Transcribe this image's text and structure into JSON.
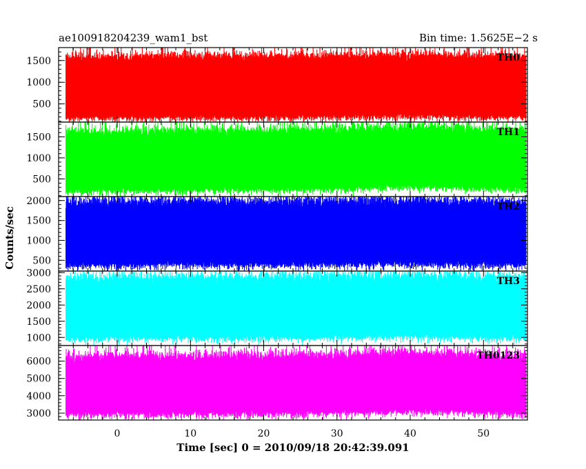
{
  "header": {
    "left_title": "ae100918204239_wam1_bst",
    "right_title": "Bin time: 1.5625E−2 s"
  },
  "axes": {
    "xlabel": "Time [sec] 0 = 2010/09/18 20:42:39.091",
    "ylabel": "Counts/sec",
    "x_ticks": [
      "0",
      "10",
      "20",
      "30",
      "40",
      "50"
    ]
  },
  "chart_data": {
    "type": "line",
    "x_range": [
      -8,
      56
    ],
    "x_ticks": [
      0,
      10,
      20,
      30,
      40,
      50
    ],
    "x_minor_step": 2,
    "xlabel": "Time [sec] 0 = 2010/09/18 20:42:39.091",
    "ylabel": "Counts/sec",
    "title": "ae100918204239_wam1_bst",
    "subtitle": "Bin time: 1.5625E−2 s",
    "bin_time_s": 0.015625,
    "series": [
      {
        "name": "TH0",
        "color": "#ff0000",
        "ylim": [
          80,
          1800
        ],
        "y_ticks": [
          500,
          1000,
          1500
        ],
        "y_tick_labels": [
          "500",
          "1000",
          "1500"
        ],
        "y_minor_step": 100,
        "mean": 850,
        "sigma": 200,
        "envelope_low": 200,
        "envelope_high": 1600,
        "x": [
          -8,
          0,
          10,
          20,
          30,
          40,
          50,
          56
        ],
        "y": [
          830,
          840,
          850,
          845,
          860,
          880,
          860,
          850
        ]
      },
      {
        "name": "TH1",
        "color": "#00ff00",
        "ylim": [
          80,
          1850
        ],
        "y_ticks": [
          500,
          1000,
          1500
        ],
        "y_tick_labels": [
          "500",
          "1000",
          "1500"
        ],
        "y_minor_step": 100,
        "mean": 900,
        "sigma": 230,
        "envelope_low": 250,
        "envelope_high": 1650,
        "x": [
          -8,
          0,
          10,
          20,
          30,
          40,
          50,
          56
        ],
        "y": [
          870,
          880,
          890,
          900,
          920,
          980,
          930,
          900
        ]
      },
      {
        "name": "TH2",
        "color": "#0000ff",
        "ylim": [
          230,
          2100
        ],
        "y_ticks": [
          500,
          1000,
          1500,
          2000
        ],
        "y_tick_labels": [
          "500",
          "1000",
          "1500",
          "2000"
        ],
        "y_minor_step": 100,
        "mean": 1150,
        "sigma": 270,
        "envelope_low": 400,
        "envelope_high": 1950,
        "x": [
          -8,
          0,
          10,
          20,
          30,
          40,
          50,
          56
        ],
        "y": [
          1140,
          1150,
          1160,
          1150,
          1170,
          1180,
          1160,
          1150
        ]
      },
      {
        "name": "TH3",
        "color": "#00ffff",
        "ylim": [
          750,
          3050
        ],
        "y_ticks": [
          1000,
          1500,
          2000,
          2500,
          3000
        ],
        "y_tick_labels": [
          "1000",
          "1500",
          "2000",
          "2500",
          "3000"
        ],
        "y_minor_step": 100,
        "mean": 1950,
        "sigma": 320,
        "envelope_low": 1000,
        "envelope_high": 2850,
        "x": [
          -8,
          0,
          10,
          20,
          30,
          40,
          50,
          56
        ],
        "y": [
          1930,
          1940,
          1950,
          1950,
          1970,
          1990,
          1960,
          1950
        ]
      },
      {
        "name": "TH0123",
        "color": "#ff00ff",
        "ylim": [
          2600,
          6900
        ],
        "y_ticks": [
          3000,
          4000,
          5000,
          6000
        ],
        "y_tick_labels": [
          "3000",
          "4000",
          "5000",
          "6000"
        ],
        "y_minor_step": 200,
        "mean": 4700,
        "sigma": 600,
        "envelope_low": 3000,
        "envelope_high": 6300,
        "x": [
          -8,
          0,
          10,
          20,
          30,
          40,
          50,
          56
        ],
        "y": [
          4650,
          4680,
          4700,
          4700,
          4750,
          4850,
          4750,
          4700
        ]
      }
    ]
  }
}
